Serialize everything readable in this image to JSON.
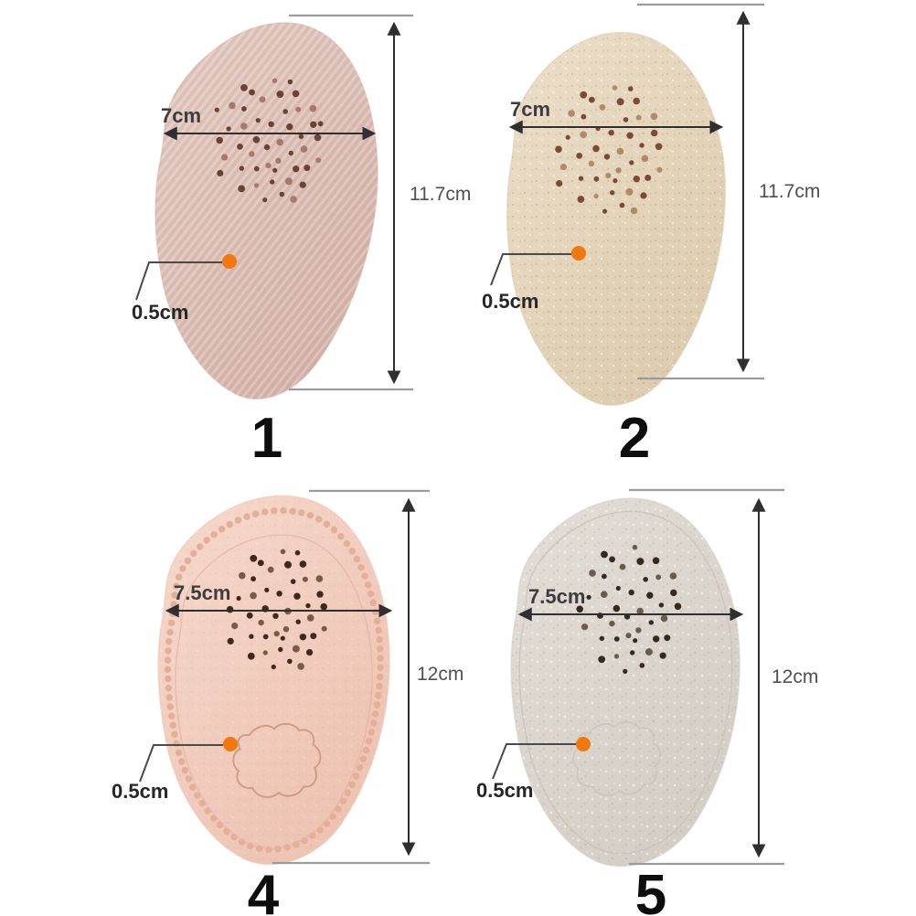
{
  "accent": {
    "orange": "#f0780f"
  },
  "panels": [
    {
      "number": "1",
      "width_label": "7cm",
      "height_label": "11.7cm",
      "thickness_label": "0.5cm",
      "color_light": "#e4cac1",
      "color_dark": "#d2b1a7",
      "perf_dark": "#6b4335",
      "perf_light": "#a57a6c"
    },
    {
      "number": "2",
      "width_label": "7cm",
      "height_label": "11.7cm",
      "thickness_label": "0.5cm",
      "color_light": "#ecdfc9",
      "color_dark": "#dccbae",
      "perf_dark": "#7c4b38",
      "perf_light": "#b18a67"
    },
    {
      "number": "4",
      "width_label": "7.5cm",
      "height_label": "12cm",
      "thickness_label": "0.5cm",
      "color_light": "#f6d9cc",
      "color_dark": "#edc2b1",
      "perf_dark": "#40291c",
      "perf_light": "#7a5a45",
      "trim": "#e3ae9a"
    },
    {
      "number": "5",
      "width_label": "7.5cm",
      "height_label": "12cm",
      "thickness_label": "0.5cm",
      "color_light": "#e3ded7",
      "color_dark": "#d3cdc4",
      "perf_dark": "#362a1f",
      "perf_light": "#6a5c4d",
      "trim": "#c6bfb5"
    }
  ]
}
